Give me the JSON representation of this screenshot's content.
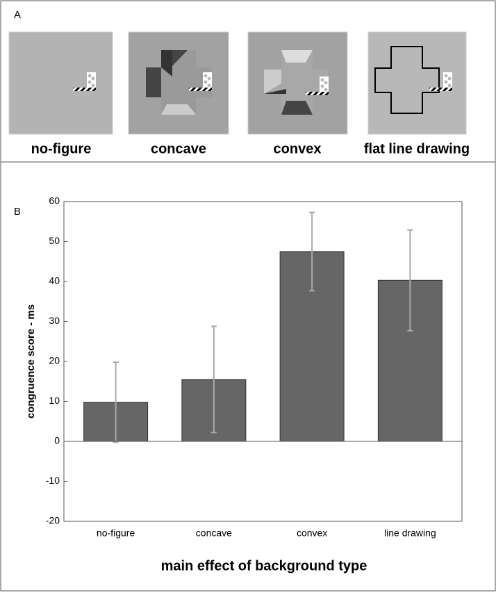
{
  "panel_a": {
    "label": "A",
    "stimuli": [
      "no-figure",
      "concave",
      "convex",
      "flat line drawing"
    ]
  },
  "chart_data": {
    "type": "bar",
    "panel_label": "B",
    "ylabel": "congruence score - ms",
    "xlabel": "main effect of background type",
    "categories": [
      "no-figure",
      "concave",
      "convex",
      "line drawing"
    ],
    "values": [
      9.8,
      15.5,
      47.5,
      40.3
    ],
    "errors": [
      10,
      13.3,
      9.8,
      12.6
    ],
    "color": "#666666",
    "error_color": "#aaaaaa",
    "ylim": [
      -20,
      60
    ],
    "yticks": [
      -20,
      -10,
      0,
      10,
      20,
      30,
      40,
      50,
      60
    ],
    "grid": false
  }
}
